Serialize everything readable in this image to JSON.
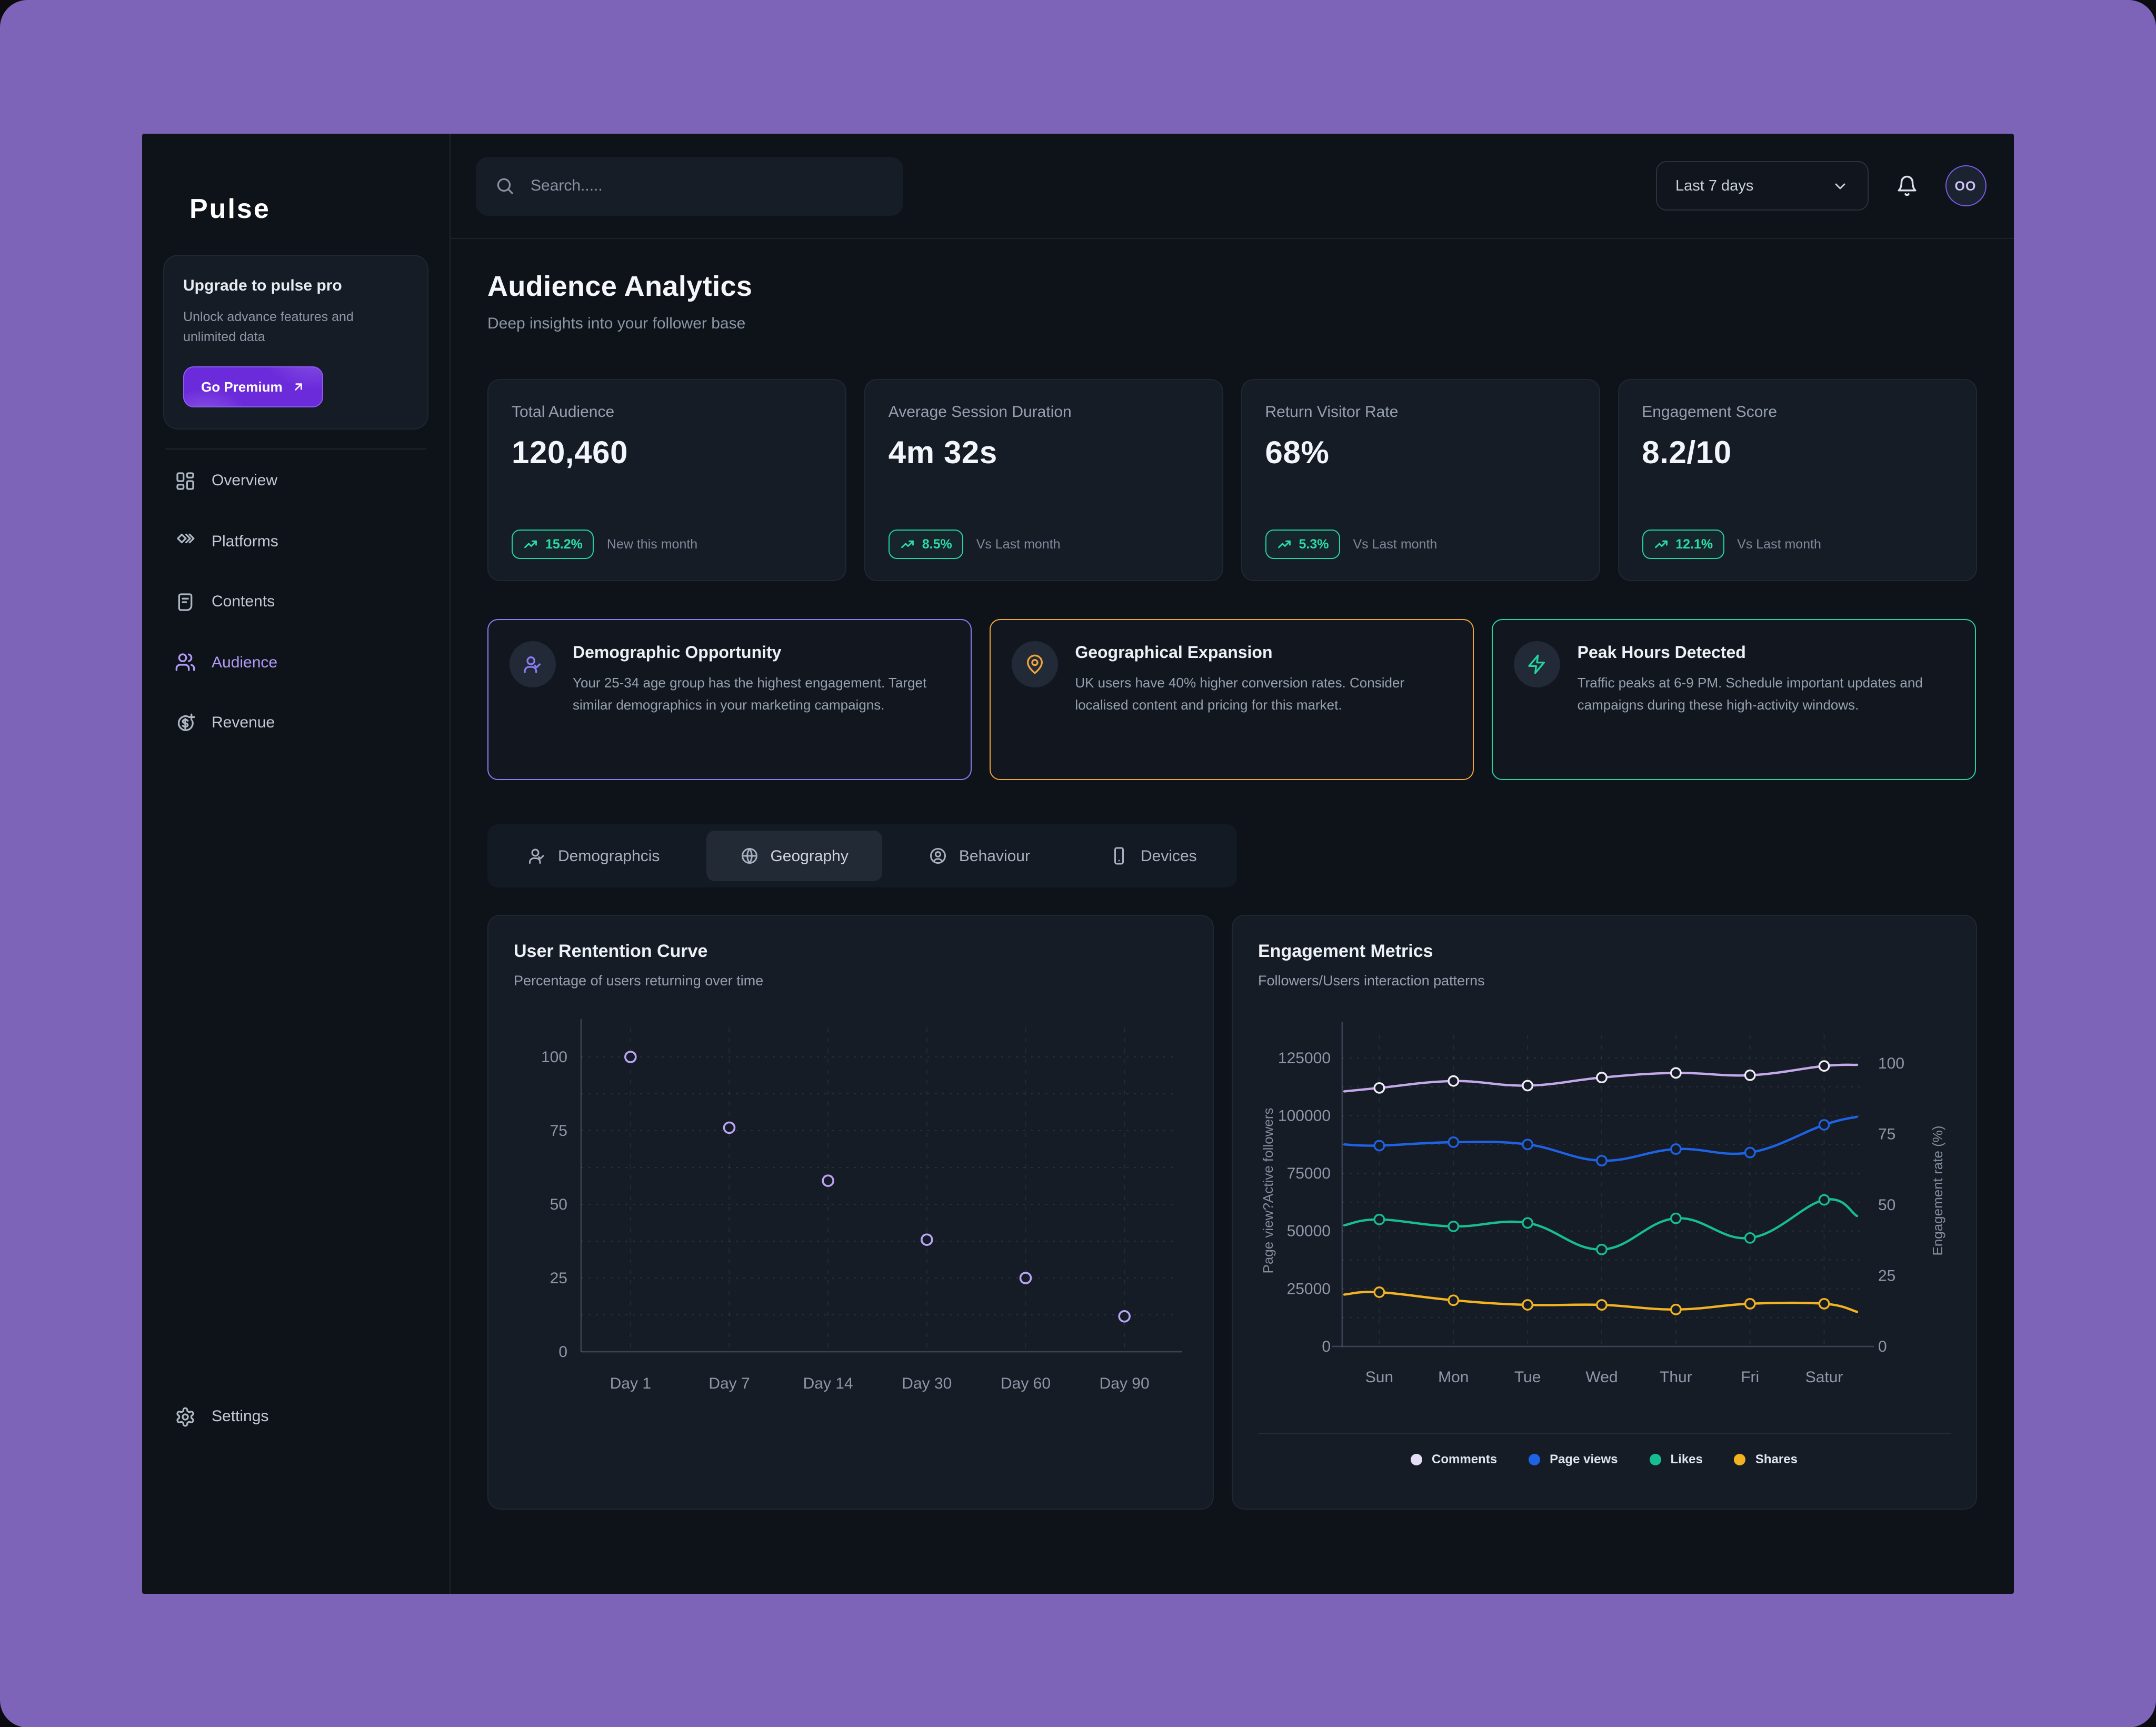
{
  "sidebar": {
    "logo": "Pulse",
    "upgrade": {
      "title": "Upgrade to pulse pro",
      "body": "Unlock advance features and unlimited data",
      "cta": "Go Premium"
    },
    "items": [
      {
        "label": "Overview",
        "active": false
      },
      {
        "label": "Platforms",
        "active": false
      },
      {
        "label": "Contents",
        "active": false
      },
      {
        "label": "Audience",
        "active": true
      },
      {
        "label": "Revenue",
        "active": false
      }
    ],
    "settings_label": "Settings"
  },
  "topbar": {
    "search_placeholder": "Search.....",
    "range_label": "Last 7 days",
    "avatar_initials": "OO"
  },
  "page": {
    "title": "Audience Analytics",
    "subtitle": "Deep insights into your follower base"
  },
  "stats": [
    {
      "label": "Total Audience",
      "value": "120,460",
      "delta": "15.2%",
      "caption": "New this month"
    },
    {
      "label": "Average Session Duration",
      "value": "4m 32s",
      "delta": "8.5%",
      "caption": "Vs Last month"
    },
    {
      "label": "Return Visitor Rate",
      "value": "68%",
      "delta": "5.3%",
      "caption": "Vs Last month"
    },
    {
      "label": "Engagement Score",
      "value": "8.2/10",
      "delta": "12.1%",
      "caption": "Vs Last month"
    }
  ],
  "insights": [
    {
      "title": "Demographic Opportunity",
      "body": "Your 25-34 age group has the highest engagement. Target similar demographics in your marketing campaigns.",
      "accent": "#8B7CF6",
      "icon": "user-check-icon"
    },
    {
      "title": "Geographical Expansion",
      "body": "UK users have 40% higher conversion rates. Consider localised content and pricing for this market.",
      "accent": "#F0A53C",
      "icon": "map-pin-icon"
    },
    {
      "title": "Peak Hours Detected",
      "body": "Traffic peaks at 6-9 PM. Schedule important updates and campaigns during these high-activity windows.",
      "accent": "#25D3A0",
      "icon": "zap-icon"
    }
  ],
  "tabs": [
    {
      "label": "Demographcis",
      "active": false
    },
    {
      "label": "Geography",
      "active": true
    },
    {
      "label": "Behaviour",
      "active": false
    },
    {
      "label": "Devices",
      "active": false
    }
  ],
  "chart_data": [
    {
      "type": "scatter",
      "title": "User Rentention Curve",
      "subtitle": "Percentage of users returning over time",
      "categories": [
        "Day 1",
        "Day 7",
        "Day 14",
        "Day 30",
        "Day 60",
        "Day 90"
      ],
      "values": [
        100,
        76,
        58,
        38,
        25,
        12
      ],
      "ylim": [
        0,
        110
      ],
      "yticks": [
        0,
        25,
        50,
        75,
        100
      ],
      "grid_step": 12.5,
      "point_color": "#B9A3F2",
      "grid": "dashed",
      "legend_position": "none"
    },
    {
      "type": "line",
      "title": "Engagement Metrics",
      "subtitle": "Followers/Users interaction patterns",
      "categories": [
        "Sun",
        "Mon",
        "Tue",
        "Wed",
        "Thur",
        "Fri",
        "Satur"
      ],
      "y_left": {
        "label": "Page view?Active followers",
        "ticks": [
          0,
          25000,
          50000,
          75000,
          100000,
          125000
        ],
        "max": 135000,
        "grid_step": 12500
      },
      "y_right": {
        "label": "Engagement rate (%)",
        "ticks": [
          0,
          25,
          50,
          75,
          100
        ],
        "max": 110
      },
      "series": [
        {
          "name": "Comments",
          "color": "#C3A9EA",
          "legend": "#E6DEF6",
          "marker": "#F0EBF9",
          "values": [
            112000,
            115000,
            113000,
            116500,
            118500,
            117500,
            121500
          ],
          "lead_in": 110500,
          "lead_out": 122000
        },
        {
          "name": "Page views",
          "color": "#1E62E6",
          "legend": "#1E62E6",
          "marker": "#1E62E6",
          "values": [
            87000,
            88500,
            87500,
            80500,
            85500,
            84000,
            96000
          ],
          "lead_in": 87500,
          "lead_out": 99500
        },
        {
          "name": "Likes",
          "color": "#16BD92",
          "legend": "#16BD92",
          "marker": "#16BD92",
          "values": [
            55000,
            52000,
            53500,
            42000,
            55500,
            47000,
            63500
          ],
          "lead_in": 52500,
          "lead_out": 56500
        },
        {
          "name": "Shares",
          "color": "#F2B322",
          "legend": "#F2B322",
          "marker": "#F2B322",
          "values": [
            23500,
            20000,
            18000,
            18000,
            16000,
            18500,
            18500
          ],
          "lead_in": 22500,
          "lead_out": 15000
        }
      ],
      "legend_position": "bottom"
    }
  ]
}
